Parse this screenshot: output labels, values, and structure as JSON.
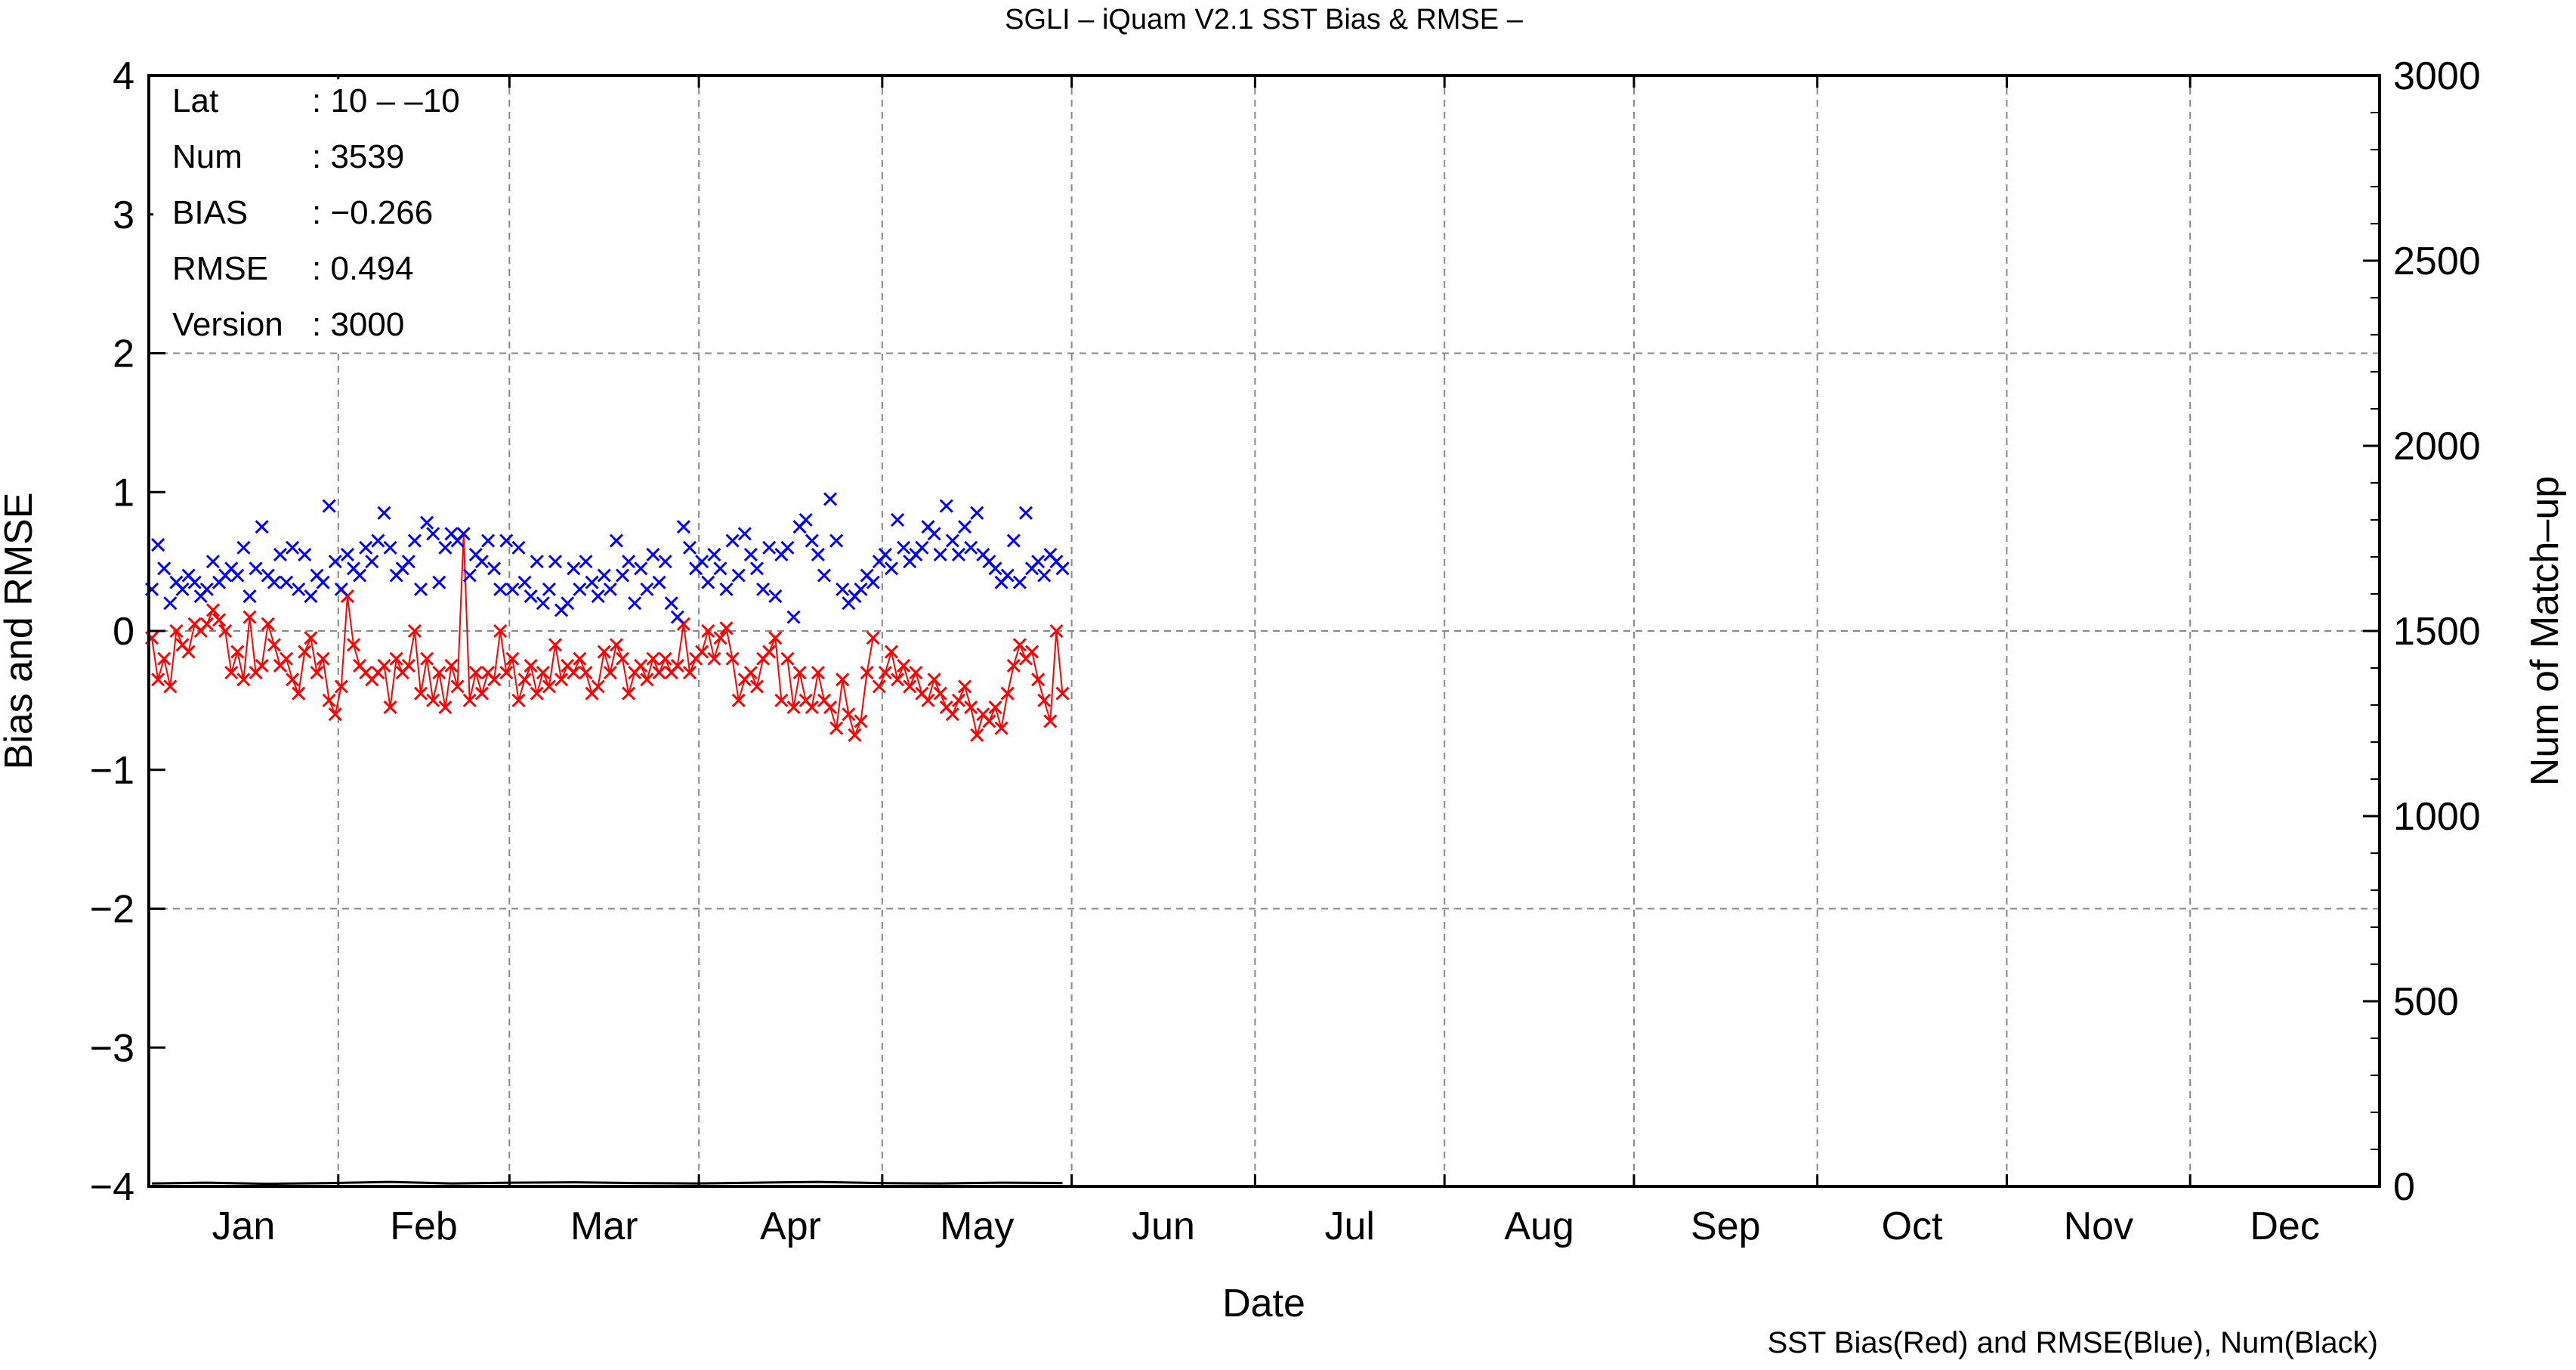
{
  "chart_data": {
    "type": "scatter",
    "title": "SGLI – iQuam V2.1 SST Bias & RMSE  –",
    "xlabel": "Date",
    "ylabel_left": "Bias and RMSE",
    "ylabel_right": "Num of Match–up",
    "footer": "SST Bias(Red) and RMSE(Blue), Num(Black)",
    "ylim_left": [
      -4,
      4
    ],
    "ylim_right": [
      0,
      3000
    ],
    "yticks_left": [
      "4",
      "3",
      "2",
      "1",
      "0",
      "−1",
      "−2",
      "−3",
      "−4"
    ],
    "yticks_right": [
      "3000",
      "2500",
      "2000",
      "1500",
      "1000",
      "500",
      "0"
    ],
    "months": [
      "Jan",
      "Feb",
      "Mar",
      "Apr",
      "May",
      "Jun",
      "Jul",
      "Aug",
      "Sep",
      "Oct",
      "Nov",
      "Dec"
    ],
    "grid": true,
    "colors": {
      "bias": "#ff0000",
      "rmse": "#0000ff",
      "num": "#000000"
    },
    "stats": [
      {
        "key": "Lat",
        "value": ": 10 – –10"
      },
      {
        "key": "Num",
        "value": ": 3539"
      },
      {
        "key": "BIAS",
        "value": ": −0.266"
      },
      {
        "key": "RMSE",
        "value": ": 0.494"
      },
      {
        "key": "Version",
        "value": ": 3000"
      }
    ],
    "series": [
      {
        "role": "bias",
        "x": [
          1,
          2,
          3,
          4,
          5,
          6,
          7,
          8,
          9,
          10,
          11,
          12,
          13,
          14,
          15,
          16,
          17,
          18,
          19,
          20,
          21,
          22,
          23,
          24,
          25,
          26,
          27,
          28,
          29,
          30,
          31,
          32,
          33,
          34,
          35,
          36,
          37,
          38,
          39,
          40,
          41,
          42,
          43,
          44,
          45,
          46,
          47,
          48,
          49,
          50,
          51,
          52,
          53,
          54,
          55,
          56,
          57,
          58,
          59,
          60,
          61,
          62,
          63,
          64,
          65,
          66,
          67,
          68,
          69,
          70,
          71,
          72,
          73,
          74,
          75,
          76,
          77,
          78,
          79,
          80,
          81,
          82,
          83,
          84,
          85,
          86,
          87,
          88,
          89,
          90,
          91,
          92,
          93,
          94,
          95,
          96,
          97,
          98,
          99,
          100,
          101,
          102,
          103,
          104,
          105,
          106,
          107,
          108,
          109,
          110,
          111,
          112,
          113,
          114,
          115,
          116,
          117,
          118,
          119,
          120,
          121,
          122,
          123,
          124,
          125,
          126,
          127,
          128,
          129,
          130,
          131,
          132,
          133,
          134,
          135,
          136,
          137,
          138,
          139,
          140,
          141,
          142,
          143,
          144,
          145,
          146,
          147,
          148,
          149,
          150
        ],
        "values": [
          -0.05,
          -0.35,
          -0.2,
          -0.4,
          0.0,
          -0.1,
          -0.15,
          0.05,
          0.0,
          0.05,
          0.15,
          0.08,
          0.0,
          -0.3,
          -0.15,
          -0.35,
          0.1,
          -0.3,
          -0.25,
          0.05,
          -0.1,
          -0.25,
          -0.2,
          -0.35,
          -0.45,
          -0.15,
          -0.05,
          -0.3,
          -0.2,
          -0.5,
          -0.6,
          -0.4,
          0.25,
          -0.1,
          -0.25,
          -0.3,
          -0.35,
          -0.3,
          -0.25,
          -0.55,
          -0.2,
          -0.3,
          -0.25,
          0.0,
          -0.45,
          -0.2,
          -0.5,
          -0.3,
          -0.55,
          -0.25,
          -0.4,
          0.7,
          -0.5,
          -0.3,
          -0.45,
          -0.3,
          -0.35,
          0.0,
          -0.3,
          -0.2,
          -0.5,
          -0.35,
          -0.25,
          -0.45,
          -0.3,
          -0.4,
          -0.1,
          -0.35,
          -0.25,
          -0.3,
          -0.2,
          -0.3,
          -0.45,
          -0.4,
          -0.15,
          -0.3,
          -0.1,
          -0.2,
          -0.45,
          -0.3,
          -0.25,
          -0.35,
          -0.2,
          -0.3,
          -0.2,
          -0.3,
          -0.25,
          0.05,
          -0.3,
          -0.2,
          -0.15,
          0.0,
          -0.2,
          -0.05,
          0.02,
          -0.2,
          -0.5,
          -0.35,
          -0.3,
          -0.4,
          -0.2,
          -0.15,
          -0.05,
          -0.5,
          -0.2,
          -0.55,
          -0.3,
          -0.5,
          -0.55,
          -0.3,
          -0.5,
          -0.55,
          -0.7,
          -0.35,
          -0.6,
          -0.75,
          -0.65,
          -0.3,
          -0.05,
          -0.4,
          -0.3,
          -0.15,
          -0.35,
          -0.25,
          -0.4,
          -0.3,
          -0.45,
          -0.5,
          -0.35,
          -0.45,
          -0.55,
          -0.6,
          -0.5,
          -0.4,
          -0.55,
          -0.75,
          -0.6,
          -0.65,
          -0.55,
          -0.7,
          -0.45,
          -0.25,
          -0.1,
          -0.2,
          -0.15,
          -0.35,
          -0.5,
          -0.65,
          0.0,
          -0.45
        ],
        "gaps_after_x": [
          104,
          119
        ]
      },
      {
        "role": "rmse",
        "x": [
          1,
          2,
          3,
          4,
          5,
          6,
          7,
          8,
          9,
          10,
          11,
          12,
          13,
          14,
          15,
          16,
          17,
          18,
          19,
          20,
          21,
          22,
          23,
          24,
          25,
          26,
          27,
          28,
          29,
          30,
          31,
          32,
          33,
          34,
          35,
          36,
          37,
          38,
          39,
          40,
          41,
          42,
          43,
          44,
          45,
          46,
          47,
          48,
          49,
          50,
          51,
          52,
          53,
          54,
          55,
          56,
          57,
          58,
          59,
          60,
          61,
          62,
          63,
          64,
          65,
          66,
          67,
          68,
          69,
          70,
          71,
          72,
          73,
          74,
          75,
          76,
          77,
          78,
          79,
          80,
          81,
          82,
          83,
          84,
          85,
          86,
          87,
          88,
          89,
          90,
          91,
          92,
          93,
          94,
          95,
          96,
          97,
          98,
          99,
          100,
          101,
          102,
          103,
          104,
          105,
          106,
          107,
          108,
          109,
          110,
          111,
          112,
          113,
          114,
          115,
          116,
          117,
          118,
          119,
          120,
          121,
          122,
          123,
          124,
          125,
          126,
          127,
          128,
          129,
          130,
          131,
          132,
          133,
          134,
          135,
          136,
          137,
          138,
          139,
          140,
          141,
          142,
          143,
          144,
          145,
          146,
          147,
          148,
          149,
          150
        ],
        "values": [
          0.3,
          0.62,
          0.45,
          0.2,
          0.35,
          0.3,
          0.4,
          0.35,
          0.25,
          0.3,
          0.5,
          0.35,
          0.4,
          0.45,
          0.4,
          0.6,
          0.25,
          0.45,
          0.75,
          0.4,
          0.35,
          0.55,
          0.35,
          0.6,
          0.3,
          0.55,
          0.25,
          0.4,
          0.35,
          0.9,
          0.5,
          0.3,
          0.55,
          0.45,
          0.4,
          0.6,
          0.5,
          0.65,
          0.85,
          0.6,
          0.4,
          0.45,
          0.5,
          0.65,
          0.3,
          0.78,
          0.7,
          0.35,
          0.6,
          0.7,
          0.65,
          0.7,
          0.4,
          0.55,
          0.5,
          0.65,
          0.45,
          0.3,
          0.65,
          0.3,
          0.6,
          0.35,
          0.25,
          0.5,
          0.2,
          0.3,
          0.5,
          0.15,
          0.2,
          0.45,
          0.3,
          0.5,
          0.35,
          0.25,
          0.4,
          0.3,
          0.65,
          0.4,
          0.5,
          0.2,
          0.45,
          0.3,
          0.55,
          0.35,
          0.5,
          0.2,
          0.1,
          0.75,
          0.6,
          0.45,
          0.5,
          0.35,
          0.55,
          0.45,
          0.3,
          0.65,
          0.4,
          0.7,
          0.55,
          0.45,
          0.3,
          0.6,
          0.25,
          0.55,
          0.6,
          0.1,
          0.75,
          0.8,
          0.65,
          0.55,
          0.4,
          0.95,
          0.65,
          0.3,
          0.2,
          0.25,
          0.3,
          0.4,
          0.35,
          0.5,
          0.55,
          0.45,
          0.8,
          0.6,
          0.5,
          0.55,
          0.6,
          0.75,
          0.7,
          0.55,
          0.9,
          0.65,
          0.55,
          0.75,
          0.6,
          0.85,
          0.55,
          0.5,
          0.45,
          0.35,
          0.4,
          0.65,
          0.35,
          0.85,
          0.45,
          0.5,
          0.4,
          0.55,
          0.5,
          0.45
        ]
      },
      {
        "role": "num",
        "x": [
          1,
          10,
          20,
          30,
          40,
          50,
          60,
          70,
          80,
          90,
          100,
          110,
          120,
          130,
          140,
          150
        ],
        "values": [
          8,
          10,
          7,
          9,
          12,
          8,
          10,
          11,
          9,
          8,
          10,
          12,
          9,
          8,
          10,
          9
        ]
      }
    ]
  }
}
